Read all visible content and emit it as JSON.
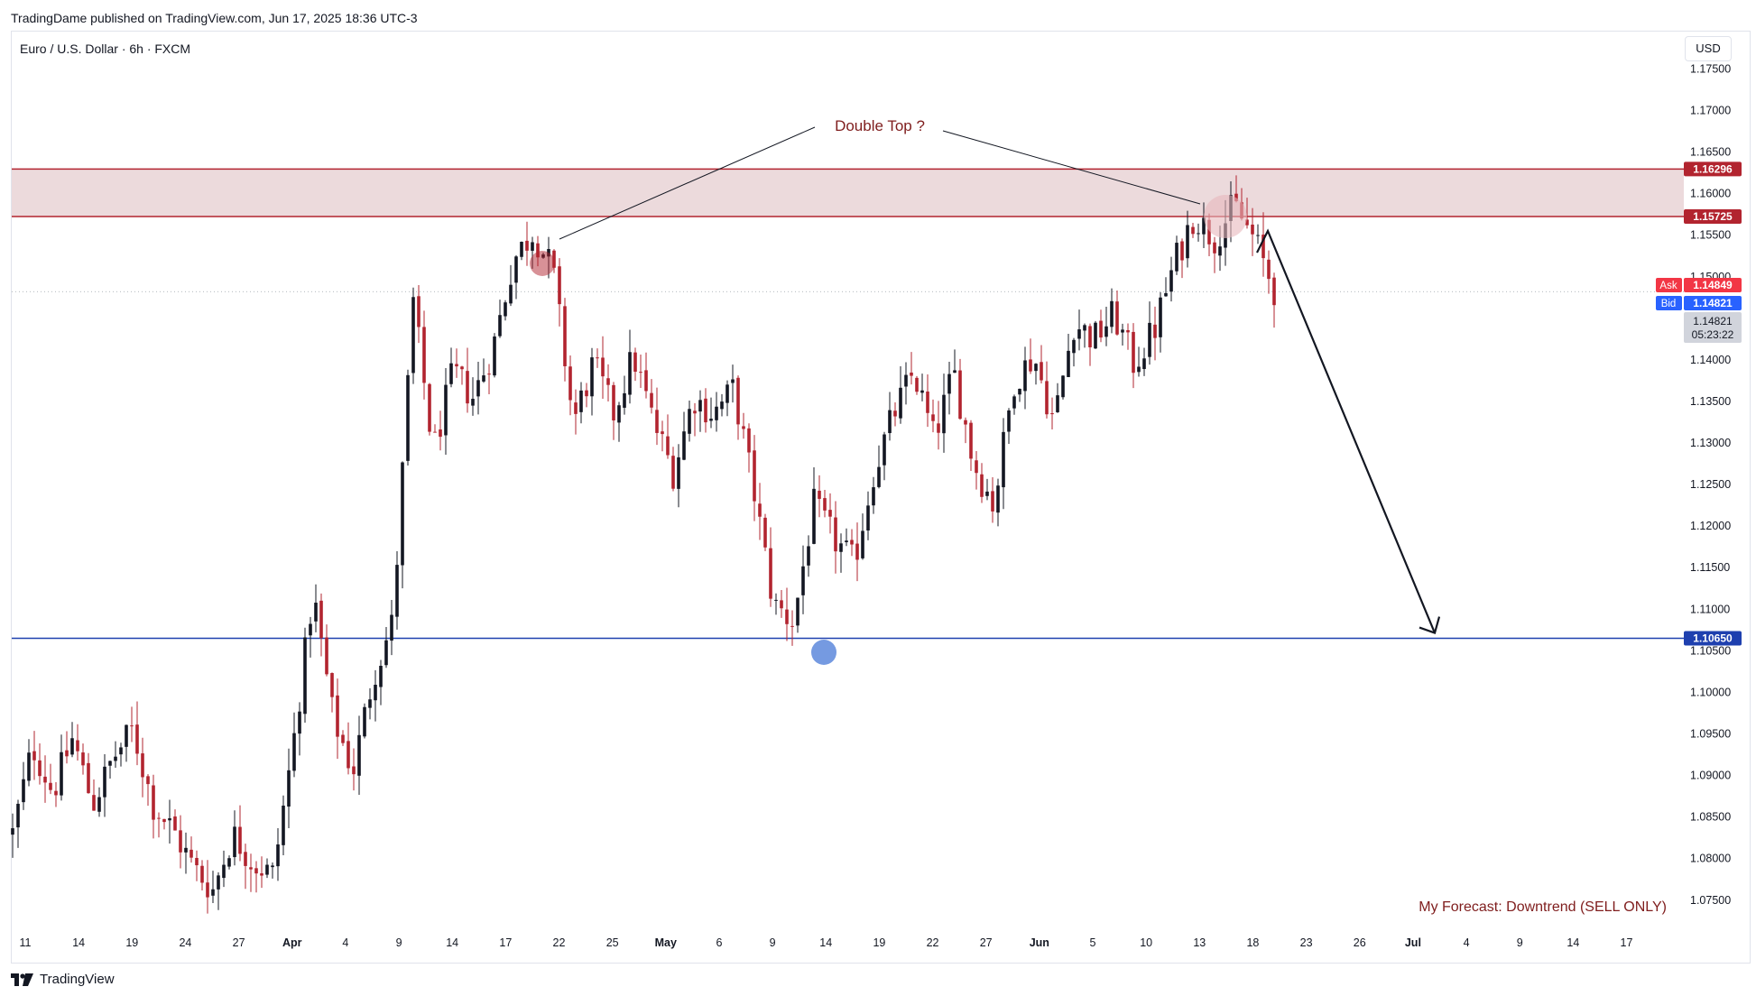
{
  "header": {
    "publisher_line": "TradingDame published on TradingView.com, Jun 17, 2025 18:36 UTC-3",
    "symbol_line": "Euro / U.S. Dollar · 6h · FXCM",
    "currency_button": "USD"
  },
  "footer": {
    "brand": "TradingView"
  },
  "colors": {
    "up": "#131722",
    "down": "#b2242f",
    "zone_fill": "#e9d3d6",
    "zone_line": "#b2242f",
    "support_line": "#1e40af",
    "ask": "#f23645",
    "bid": "#2962ff",
    "annotation_text": "#7f1d1d"
  },
  "chart_data": {
    "type": "candlestick",
    "ylim": [
      1.0715,
      1.1795
    ],
    "y_ticks": [
      "1.17500",
      "1.17000",
      "1.16500",
      "1.16000",
      "1.15500",
      "1.15000",
      "1.14500",
      "1.14000",
      "1.13500",
      "1.13000",
      "1.12500",
      "1.12000",
      "1.11500",
      "1.11000",
      "1.10500",
      "1.10000",
      "1.09500",
      "1.09000",
      "1.08500",
      "1.08000",
      "1.07500"
    ],
    "x_ticks": [
      {
        "label": "11",
        "bold": false
      },
      {
        "label": "14",
        "bold": false
      },
      {
        "label": "19",
        "bold": false
      },
      {
        "label": "24",
        "bold": false
      },
      {
        "label": "27",
        "bold": false
      },
      {
        "label": "Apr",
        "bold": true
      },
      {
        "label": "4",
        "bold": false
      },
      {
        "label": "9",
        "bold": false
      },
      {
        "label": "14",
        "bold": false
      },
      {
        "label": "17",
        "bold": false
      },
      {
        "label": "22",
        "bold": false
      },
      {
        "label": "25",
        "bold": false
      },
      {
        "label": "May",
        "bold": true
      },
      {
        "label": "6",
        "bold": false
      },
      {
        "label": "9",
        "bold": false
      },
      {
        "label": "14",
        "bold": false
      },
      {
        "label": "19",
        "bold": false
      },
      {
        "label": "22",
        "bold": false
      },
      {
        "label": "27",
        "bold": false
      },
      {
        "label": "Jun",
        "bold": true
      },
      {
        "label": "5",
        "bold": false
      },
      {
        "label": "10",
        "bold": false
      },
      {
        "label": "13",
        "bold": false
      },
      {
        "label": "18",
        "bold": false
      },
      {
        "label": "23",
        "bold": false
      },
      {
        "label": "26",
        "bold": false
      },
      {
        "label": "Jul",
        "bold": true
      },
      {
        "label": "4",
        "bold": false
      },
      {
        "label": "9",
        "bold": false
      },
      {
        "label": "14",
        "bold": false
      },
      {
        "label": "17",
        "bold": false
      }
    ],
    "price_path": [
      1.083,
      1.0935,
      1.088,
      1.0945,
      1.0865,
      1.092,
      1.0955,
      1.0865,
      1.0835,
      1.079,
      1.0762,
      1.083,
      1.0795,
      1.078,
      1.0935,
      1.112,
      1.097,
      1.0905,
      1.102,
      1.1085,
      1.147,
      1.129,
      1.1385,
      1.1355,
      1.1415,
      1.152,
      1.1555,
      1.1505,
      1.1325,
      1.1395,
      1.1335,
      1.1405,
      1.1325,
      1.1265,
      1.1355,
      1.1335,
      1.1365,
      1.1245,
      1.1105,
      1.1085,
      1.1225,
      1.1185,
      1.1155,
      1.1265,
      1.1335,
      1.1385,
      1.1305,
      1.1385,
      1.1275,
      1.1225,
      1.1375,
      1.1405,
      1.1325,
      1.1445,
      1.1425,
      1.1455,
      1.1395,
      1.1435,
      1.1515,
      1.1575,
      1.1545,
      1.1585,
      1.1545,
      1.1485
    ],
    "resistance_zone": {
      "top": 1.16296,
      "bottom": 1.15725
    },
    "support_level": 1.1065,
    "price_labels": [
      {
        "value": "1.16296",
        "kind": "zone"
      },
      {
        "value": "1.15725",
        "kind": "zone"
      },
      {
        "value": "1.10650",
        "kind": "support"
      }
    ],
    "quote": {
      "ask_label": "Ask",
      "ask": "1.14849",
      "bid_label": "Bid",
      "bid": "1.14821",
      "last": "1.14821",
      "countdown": "05:23:22",
      "last_value": 1.14821
    },
    "annotations": {
      "double_top": "Double Top ?",
      "forecast": "My Forecast: Downtrend (SELL ONLY)",
      "forecast_target": 1.1065
    }
  }
}
